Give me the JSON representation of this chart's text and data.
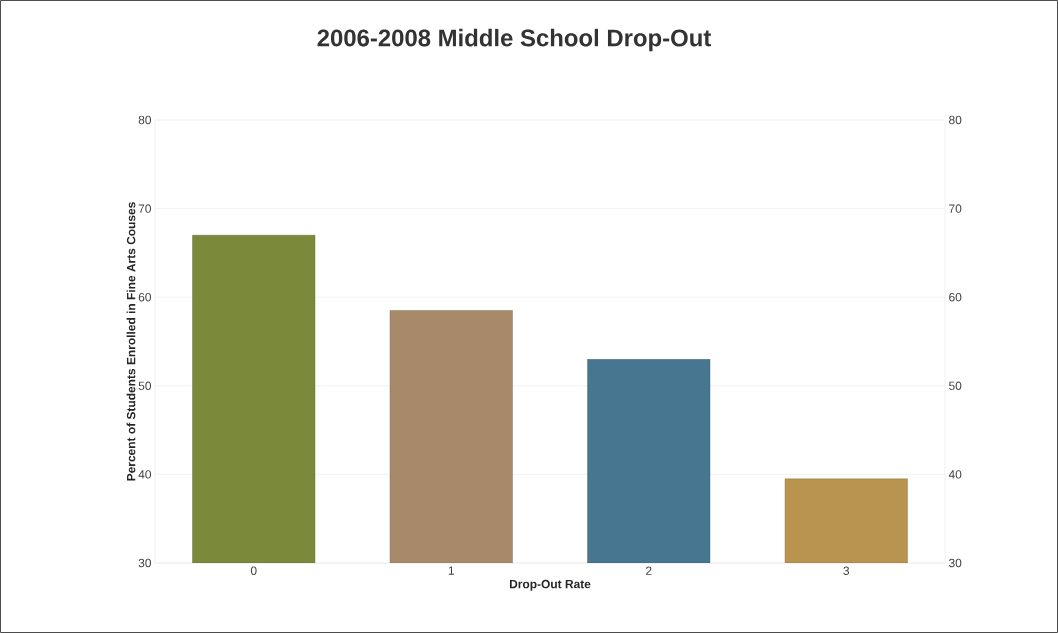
{
  "chart_data": {
    "type": "bar",
    "title": "2006-2008 Middle School Drop-Out",
    "xlabel": "Drop-Out Rate",
    "ylabel": "Percent of Students Enrolled in Fine Arts Couses",
    "categories": [
      "0",
      "1",
      "2",
      "3"
    ],
    "values": [
      67,
      58.5,
      53,
      39.5
    ],
    "colors": [
      "#7a8a3a",
      "#a8896a",
      "#477790",
      "#b8944f"
    ],
    "ylim": [
      30,
      80
    ],
    "yticks": [
      30,
      40,
      50,
      60,
      70,
      80
    ],
    "y2lim": [
      30,
      80
    ],
    "y2ticks": [
      30,
      40,
      50,
      60,
      70,
      80
    ],
    "grid": "y"
  }
}
